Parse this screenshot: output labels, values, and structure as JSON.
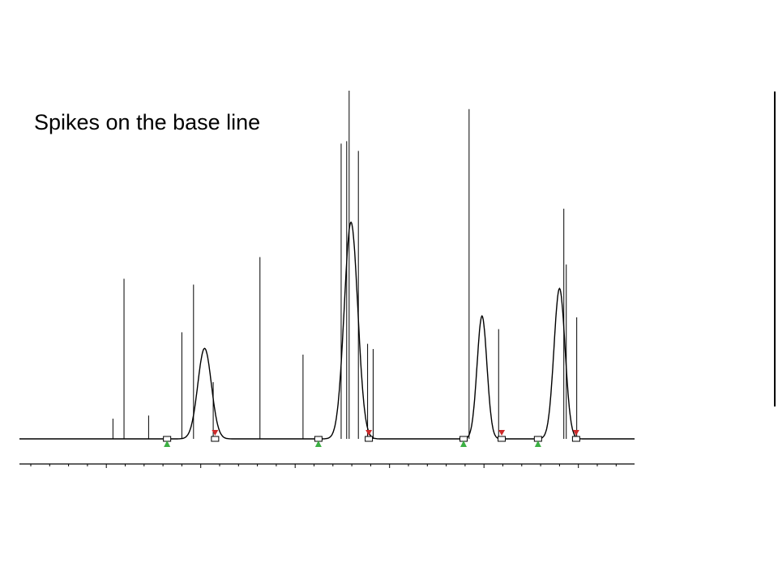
{
  "chart_data": {
    "type": "line",
    "title": "Spikes on the base line",
    "xlabel": "",
    "ylabel": "",
    "xlim": [
      0,
      1000
    ],
    "ylim": [
      0,
      1000
    ],
    "grid": false,
    "peaks": [
      {
        "center": 301,
        "height": 260,
        "width": 11,
        "start": 240,
        "end": 318
      },
      {
        "center": 539,
        "height": 622,
        "width": 11,
        "start": 486,
        "end": 568
      },
      {
        "center": 752,
        "height": 353,
        "width": 8,
        "start": 722,
        "end": 784
      },
      {
        "center": 878,
        "height": 432,
        "width": 9,
        "start": 843,
        "end": 905
      }
    ],
    "spikes": [
      {
        "x": 152,
        "height": 58
      },
      {
        "x": 170,
        "height": 460
      },
      {
        "x": 210,
        "height": 67
      },
      {
        "x": 264,
        "height": 306
      },
      {
        "x": 283,
        "height": 443
      },
      {
        "x": 315,
        "height": 163
      },
      {
        "x": 391,
        "height": 522
      },
      {
        "x": 461,
        "height": 242
      },
      {
        "x": 523,
        "height": 848
      },
      {
        "x": 532,
        "height": 855
      },
      {
        "x": 536,
        "height": 1000
      },
      {
        "x": 551,
        "height": 827
      },
      {
        "x": 566,
        "height": 273
      },
      {
        "x": 575,
        "height": 258
      },
      {
        "x": 731,
        "height": 947
      },
      {
        "x": 779,
        "height": 315
      },
      {
        "x": 885,
        "height": 661
      },
      {
        "x": 889,
        "height": 501
      },
      {
        "x": 906,
        "height": 349
      }
    ],
    "series": [
      {
        "values": []
      }
    ],
    "colors": {
      "line": "#000000",
      "start_marker": "#3cb043",
      "end_marker": "#cc2a2a",
      "boundary_box": "#000000"
    }
  }
}
